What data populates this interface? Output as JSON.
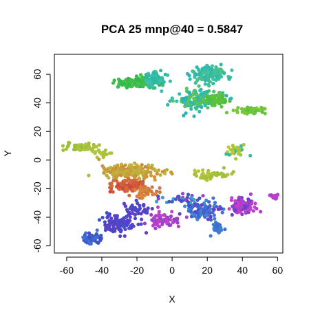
{
  "chart_data": {
    "type": "scatter",
    "title": "PCA 25 mnp@40 = 0.5847",
    "xlabel": "X",
    "ylabel": "Y",
    "xlim": [
      -67,
      63
    ],
    "ylim": [
      -65,
      74
    ],
    "xticks": [
      -60,
      -40,
      -20,
      0,
      20,
      40,
      60
    ],
    "yticks": [
      -60,
      -40,
      -20,
      0,
      20,
      40,
      60
    ],
    "xtick_labels": [
      "-60",
      "-40",
      "-20",
      "0",
      "20",
      "40",
      "60"
    ],
    "ytick_labels": [
      "-60",
      "-40",
      "-20",
      "0",
      "20",
      "40",
      "60"
    ],
    "grid": false,
    "point_color_note": "points colored by class along a hue gradient",
    "clusters": [
      {
        "center": [
          -20,
          54
        ],
        "spread": [
          10,
          3
        ],
        "count": 160,
        "colors": [
          "#3cbb4a",
          "#32b84e",
          "#45c04a"
        ]
      },
      {
        "center": [
          -10,
          57
        ],
        "spread": [
          5,
          4
        ],
        "count": 80,
        "colors": [
          "#2eb8a0",
          "#36bba8",
          "#3cc0b0"
        ]
      },
      {
        "center": [
          20,
          60
        ],
        "spread": [
          8,
          5
        ],
        "count": 120,
        "colors": [
          "#3bbfa0",
          "#2fb6b0",
          "#48c28a"
        ]
      },
      {
        "center": [
          15,
          42
        ],
        "spread": [
          12,
          6
        ],
        "count": 150,
        "colors": [
          "#37b9a8",
          "#2ab3b8",
          "#49c36a",
          "#5cc458"
        ]
      },
      {
        "center": [
          25,
          42
        ],
        "spread": [
          5,
          3
        ],
        "count": 50,
        "colors": [
          "#5cc23c",
          "#4fbf3a"
        ]
      },
      {
        "center": [
          45,
          35
        ],
        "spread": [
          7,
          2
        ],
        "count": 60,
        "colors": [
          "#6dc53c",
          "#7ac63c",
          "#5ec040"
        ]
      },
      {
        "center": [
          -52,
          9
        ],
        "spread": [
          7,
          2
        ],
        "count": 70,
        "colors": [
          "#a3c13a",
          "#9bbf3a",
          "#b0c43a"
        ]
      },
      {
        "center": [
          -40,
          5
        ],
        "spread": [
          5,
          2
        ],
        "count": 25,
        "colors": [
          "#a6c23a",
          "#b3c63c"
        ]
      },
      {
        "center": [
          36,
          7
        ],
        "spread": [
          5,
          3
        ],
        "count": 40,
        "colors": [
          "#a9c43a",
          "#c0c63a",
          "#38b9a8"
        ]
      },
      {
        "center": [
          22,
          -10
        ],
        "spread": [
          9,
          3
        ],
        "count": 55,
        "colors": [
          "#9cc03a",
          "#b8c53c",
          "#a5c13a"
        ]
      },
      {
        "center": [
          -25,
          -8
        ],
        "spread": [
          14,
          4
        ],
        "count": 200,
        "colors": [
          "#c2b43a",
          "#c89a3a",
          "#d08a3c",
          "#b9b13c"
        ]
      },
      {
        "center": [
          -25,
          -18
        ],
        "spread": [
          8,
          4
        ],
        "count": 110,
        "colors": [
          "#d05a3c",
          "#cc483c",
          "#d46a3c"
        ]
      },
      {
        "center": [
          -14,
          -22
        ],
        "spread": [
          6,
          3
        ],
        "count": 40,
        "colors": [
          "#cf763c",
          "#d8863c"
        ]
      },
      {
        "center": [
          -46,
          -55
        ],
        "spread": [
          4,
          3
        ],
        "count": 70,
        "colors": [
          "#3c5fcc",
          "#3d52c8",
          "#4470d2"
        ]
      },
      {
        "center": [
          -30,
          -44
        ],
        "spread": [
          8,
          5
        ],
        "count": 110,
        "colors": [
          "#5a3fcc",
          "#6040c8",
          "#4b46c6",
          "#3f4fcb"
        ]
      },
      {
        "center": [
          -5,
          -42
        ],
        "spread": [
          9,
          4
        ],
        "count": 70,
        "colors": [
          "#b444c8",
          "#c040cc",
          "#9a3fca"
        ]
      },
      {
        "center": [
          -20,
          -34
        ],
        "spread": [
          7,
          4
        ],
        "count": 40,
        "colors": [
          "#5a40c8",
          "#4a48c6"
        ]
      },
      {
        "center": [
          18,
          -35
        ],
        "spread": [
          8,
          5
        ],
        "count": 110,
        "colors": [
          "#3e5fcc",
          "#6040c8",
          "#4570d2",
          "#3d86d0"
        ]
      },
      {
        "center": [
          26,
          -48
        ],
        "spread": [
          3,
          3
        ],
        "count": 35,
        "colors": [
          "#3e70d0",
          "#3c7fd2"
        ]
      },
      {
        "center": [
          40,
          -32
        ],
        "spread": [
          6,
          5
        ],
        "count": 110,
        "colors": [
          "#b040c8",
          "#c43fcc",
          "#8a3fcb",
          "#6a40ca"
        ]
      },
      {
        "center": [
          58,
          -25
        ],
        "spread": [
          2,
          1.5
        ],
        "count": 15,
        "colors": [
          "#b142c8",
          "#c03ecb"
        ]
      },
      {
        "center": [
          5,
          -27
        ],
        "spread": [
          10,
          3
        ],
        "count": 35,
        "colors": [
          "#3ca0c8",
          "#3f56c8",
          "#9a3fca"
        ]
      }
    ]
  }
}
